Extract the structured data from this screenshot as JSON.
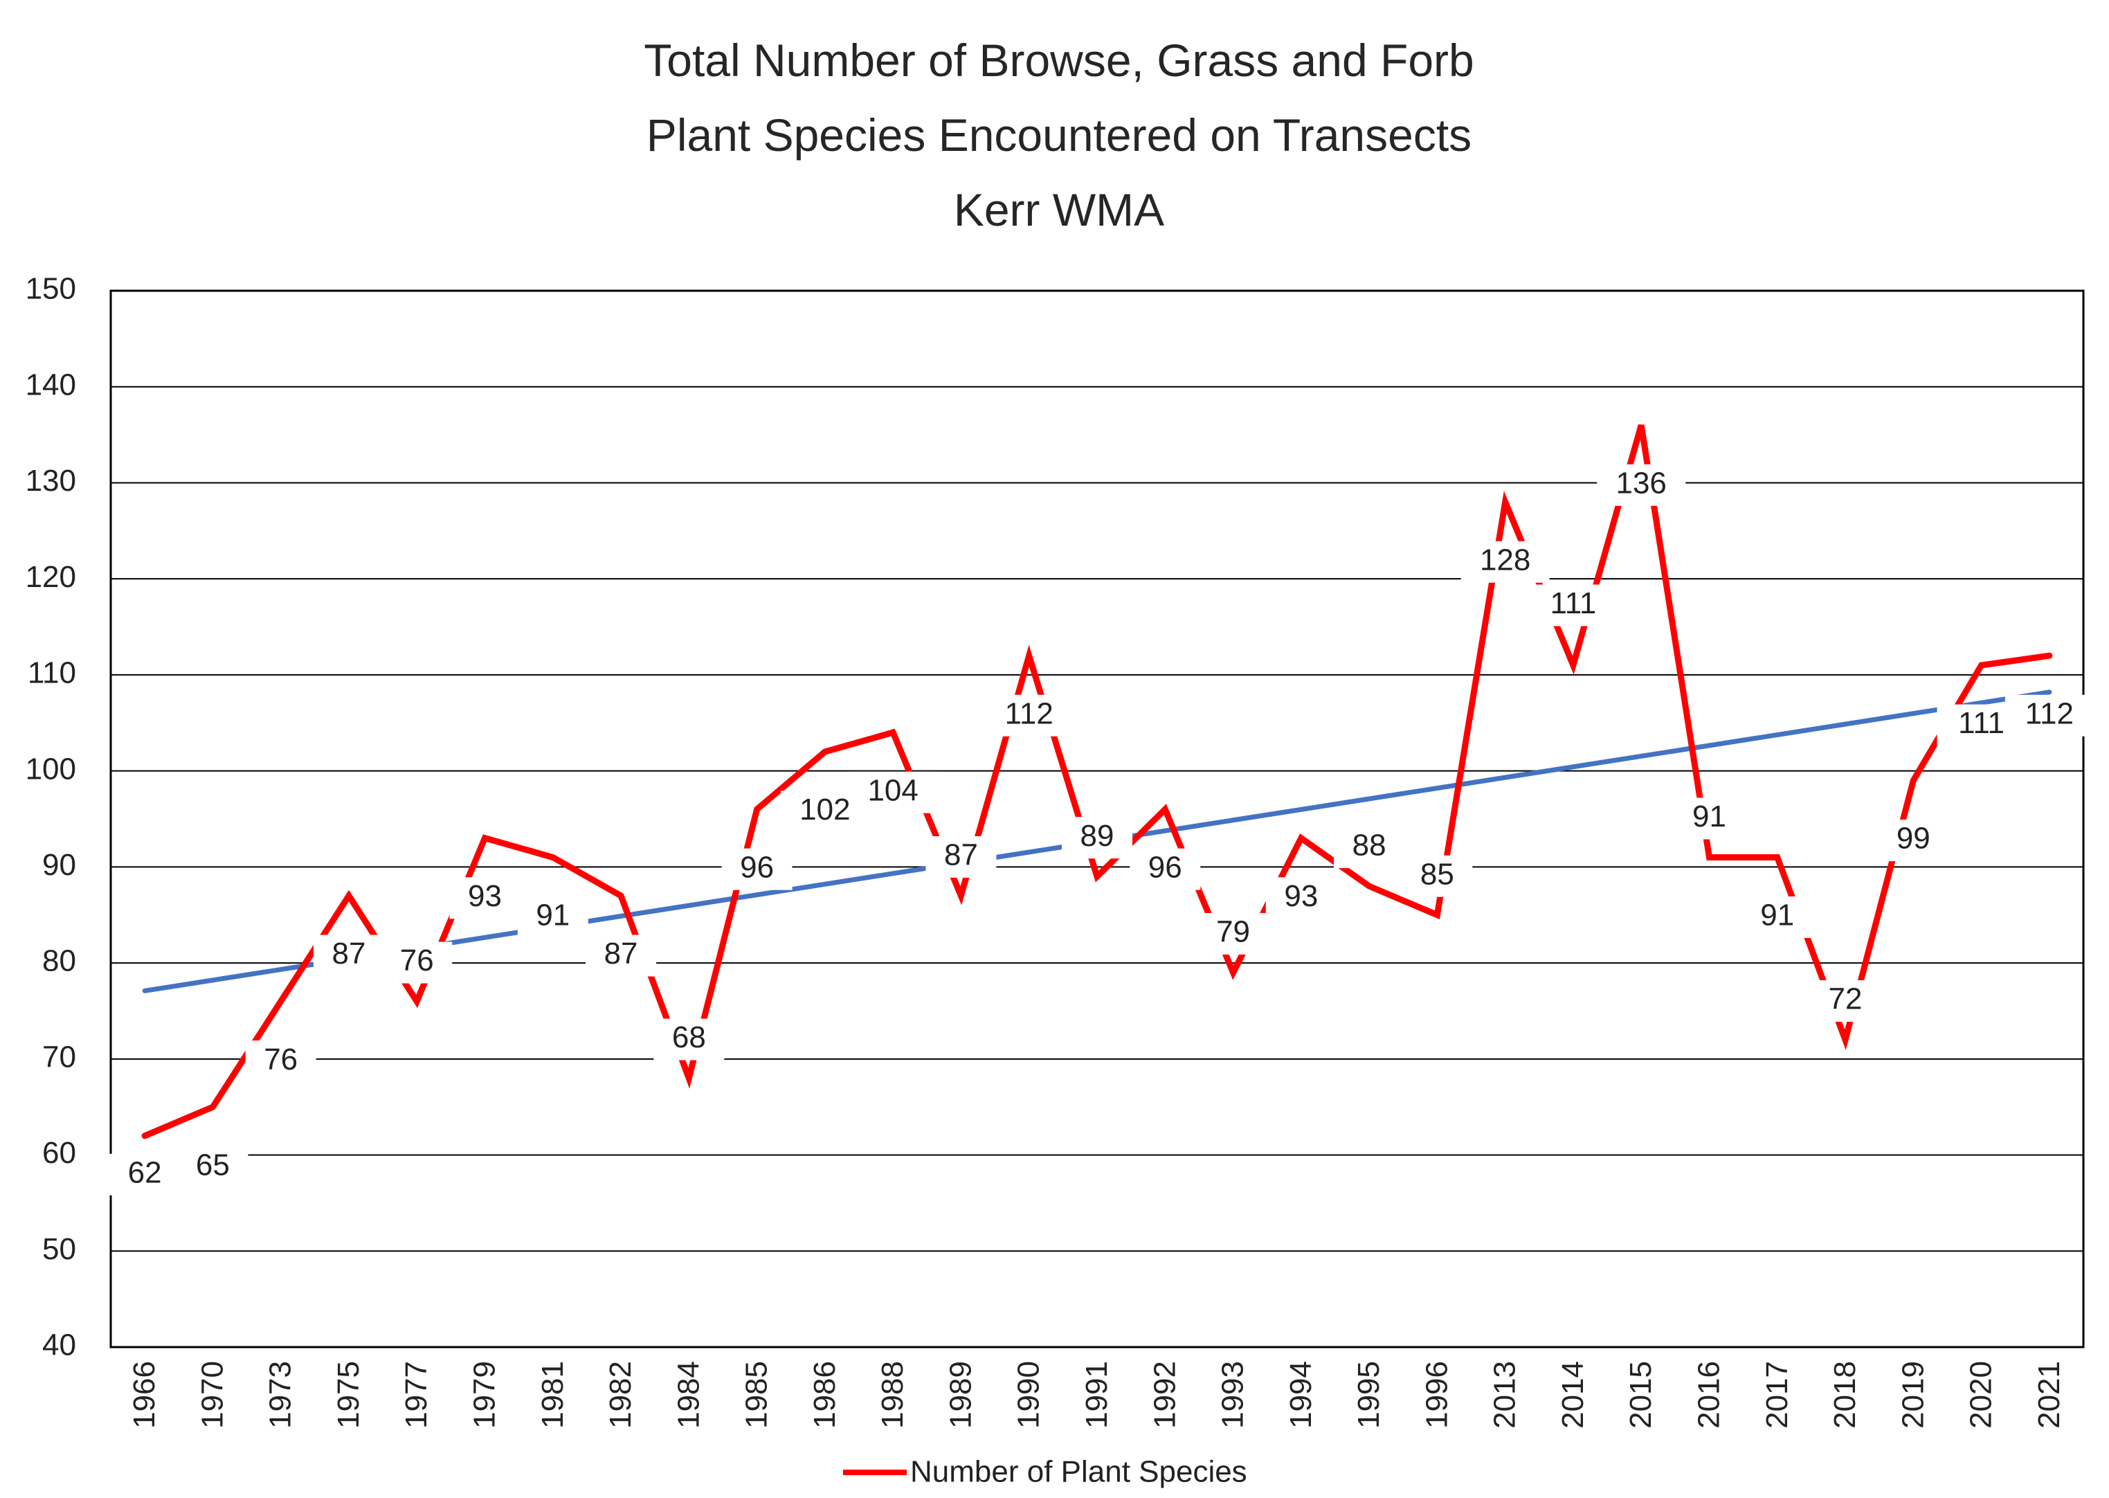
{
  "chart_data": {
    "type": "line",
    "title": [
      "Total Number of Browse, Grass and Forb",
      "Plant Species Encountered on Transects",
      "Kerr WMA"
    ],
    "xlabel": "",
    "ylabel": "",
    "ylim": [
      40,
      150
    ],
    "yticks": [
      40,
      50,
      60,
      70,
      80,
      90,
      100,
      110,
      120,
      130,
      140,
      150
    ],
    "grid": "horizontal",
    "legend_position": "bottom",
    "categories": [
      "1966",
      "1970",
      "1973",
      "1975",
      "1977",
      "1979",
      "1981",
      "1982",
      "1984",
      "1985",
      "1986",
      "1988",
      "1989",
      "1990",
      "1991",
      "1992",
      "1993",
      "1994",
      "1995",
      "1996",
      "2013",
      "2014",
      "2015",
      "2016",
      "2017",
      "2018",
      "2019",
      "2020",
      "2021"
    ],
    "series": [
      {
        "name": "Number of Plant Species",
        "color": "#FF0000",
        "values": [
          62,
          65,
          76,
          87,
          76,
          93,
          91,
          87,
          68,
          96,
          102,
          104,
          87,
          112,
          89,
          96,
          79,
          93,
          88,
          85,
          128,
          111,
          136,
          91,
          91,
          72,
          99,
          111,
          112
        ]
      }
    ],
    "trendline": {
      "type": "linear",
      "color": "#4472C4",
      "start": 77.1,
      "end": 108.2
    },
    "labels": [
      "62",
      "65",
      "76",
      "87",
      "76",
      "93",
      "91",
      "87",
      "68",
      "96",
      "102",
      "104",
      "87",
      "112",
      "89",
      "96",
      "79",
      "93",
      "88",
      "85",
      "128",
      "111",
      "136",
      "91",
      "91",
      "72",
      "99",
      "111",
      "112"
    ]
  }
}
